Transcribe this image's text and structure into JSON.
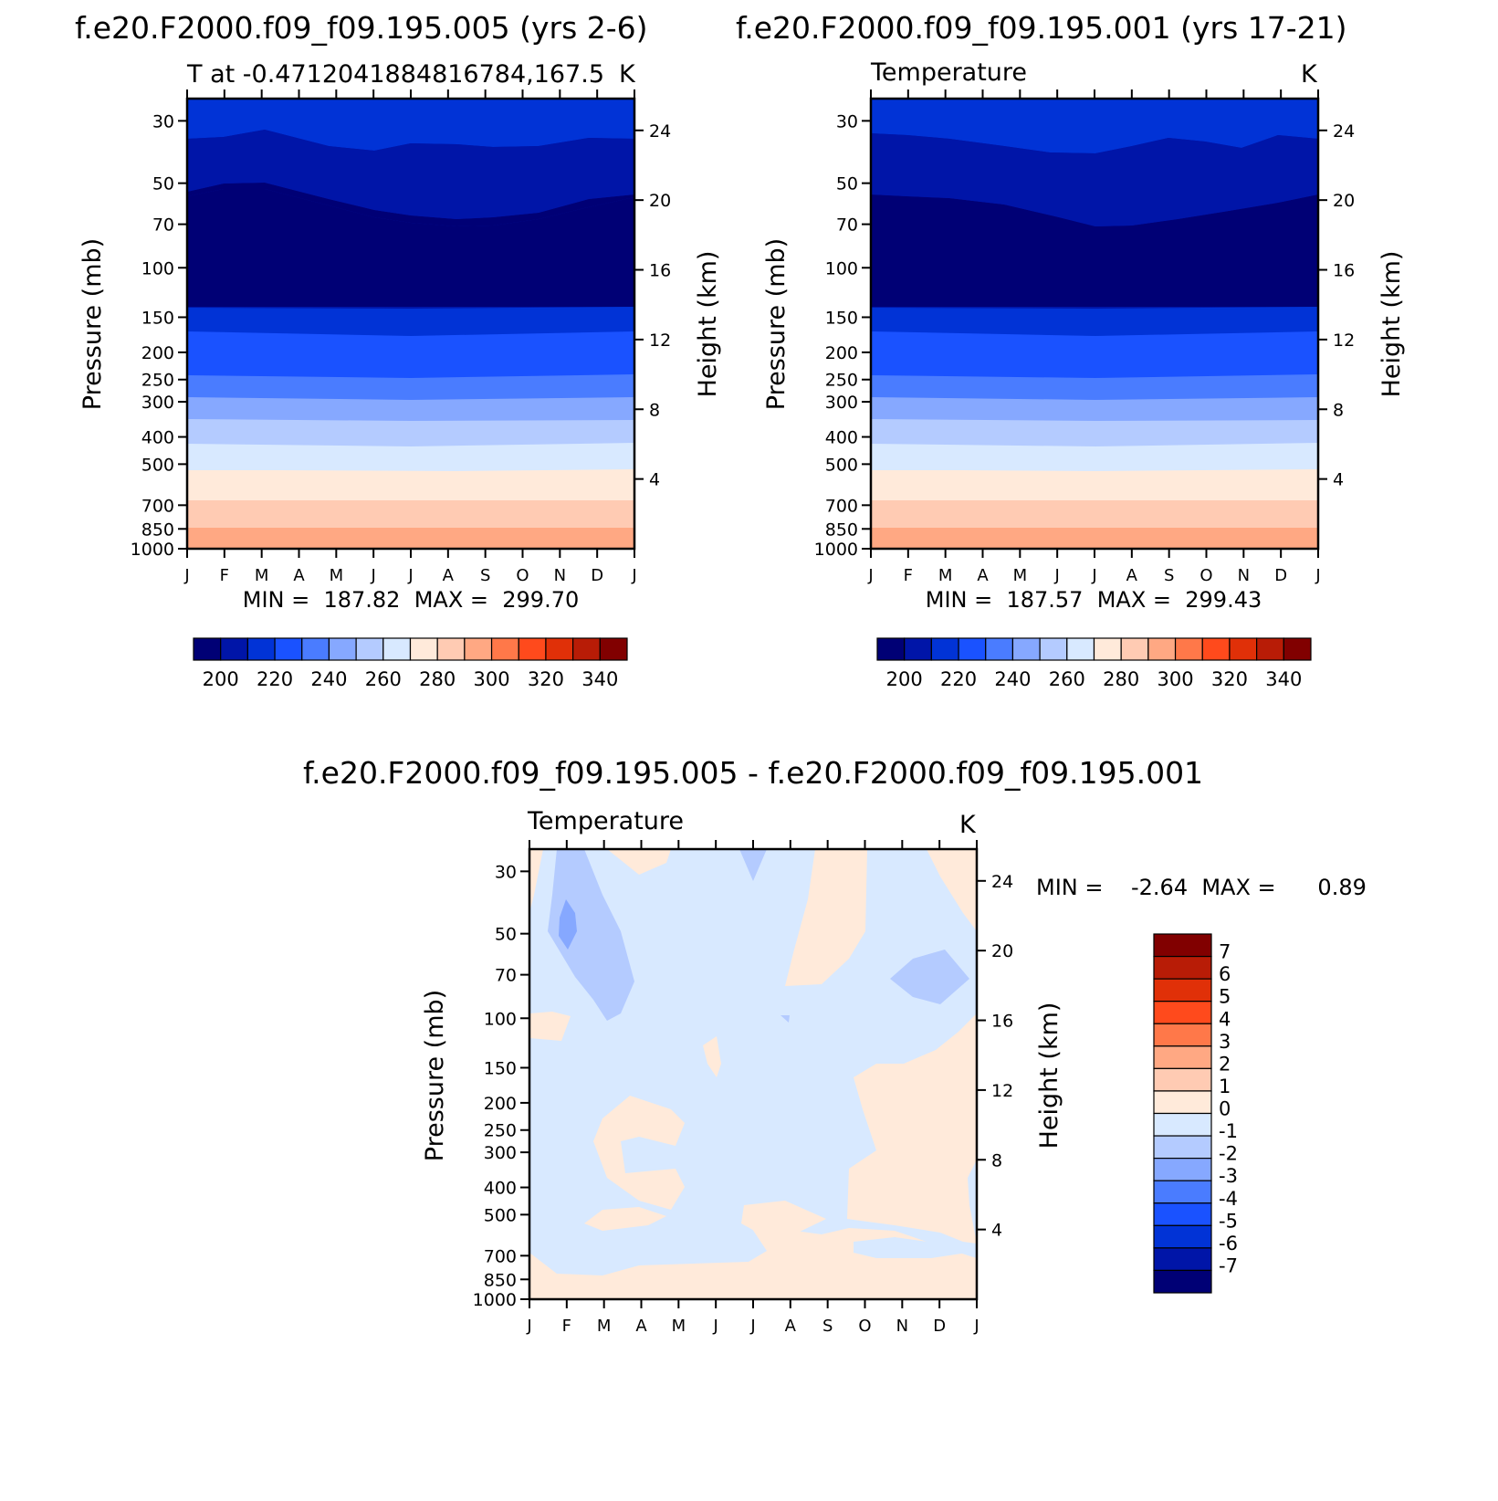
{
  "panels": [
    {
      "title": "f.e20.F2000.f09_f09.195.005 (yrs 2-6)",
      "subtitle_left": "T at -0.4712041884816784,167.5",
      "subtitle_right": "K",
      "min_max_text": "MIN =  187.82  MAX =  299.70"
    },
    {
      "title": "f.e20.F2000.f09_f09.195.001 (yrs 17-21)",
      "subtitle_left": "Temperature",
      "subtitle_right": "K",
      "min_max_text": "MIN =  187.57  MAX =  299.43"
    },
    {
      "title": "f.e20.F2000.f09_f09.195.005 - f.e20.F2000.f09_f09.195.001",
      "subtitle_left": "Temperature",
      "subtitle_right": "K",
      "min_max_text": "MIN =    -2.64  MAX =      0.89"
    }
  ],
  "chart_data": [
    {
      "type": "heatmap",
      "subtype": "filled-contour",
      "title": "f.e20.F2000.f09_f09.195.005 (yrs 2-6)",
      "subtitle": "T at -0.4712041884816784,167.5",
      "units": "K",
      "xlabel": "",
      "ylabel": "Pressure (mb)",
      "ylabel_right": "Height (km)",
      "x_ticks": [
        "J",
        "F",
        "M",
        "A",
        "M",
        "J",
        "J",
        "A",
        "S",
        "O",
        "N",
        "D",
        "J"
      ],
      "y_ticks": [
        "30",
        "50",
        "70",
        "100",
        "150",
        "200",
        "250",
        "300",
        "400",
        "500",
        "700",
        "850",
        "1000"
      ],
      "y_ticks_right": [
        "24",
        "20",
        "16",
        "12",
        "8",
        "4"
      ],
      "y_scale": "log",
      "levels_K": [
        200,
        210,
        220,
        230,
        240,
        250,
        260,
        270,
        280,
        290,
        300,
        310,
        320,
        330,
        340
      ],
      "level_boundaries_hPa_approx": {
        "lt_190": [
          [
            30,
            118
          ],
          [
            100,
            118
          ]
        ],
        "190_200": "about 26-58 hPa (lower near Jul-Aug) and again 120-150 hPa",
        "200_210": "top of domain to about 40 hPa; 150-190 hPa",
        "210_220": "190-220 hPa",
        "220_230": "220-260 hPa",
        "230_240": "260-310 hPa",
        "240_250": "310-370 hPa",
        "250_260": "370-460 hPa",
        "260_270": "460-560 hPa",
        "270_280": "560-700 hPa",
        "280_290": "700-850 hPa",
        "290_300": "850-990 hPa"
      },
      "min": 187.82,
      "max": 299.7,
      "colorbar": {
        "orientation": "horizontal",
        "labels": [
          "200",
          "220",
          "240",
          "260",
          "280",
          "300",
          "320",
          "340"
        ],
        "colors": [
          "#000075",
          "#0015a8",
          "#0133d6",
          "#1a52ff",
          "#4a7cff",
          "#86a8ff",
          "#b4cbff",
          "#d8e9ff",
          "#ffeada",
          "#ffcbb3",
          "#ffa883",
          "#ff7849",
          "#ff4a1c",
          "#e03008",
          "#b81c06",
          "#810000"
        ]
      }
    },
    {
      "type": "heatmap",
      "subtype": "filled-contour",
      "title": "f.e20.F2000.f09_f09.195.001 (yrs 17-21)",
      "subtitle": "Temperature",
      "units": "K",
      "xlabel": "",
      "ylabel": "Pressure (mb)",
      "ylabel_right": "Height (km)",
      "x_ticks": [
        "J",
        "F",
        "M",
        "A",
        "M",
        "J",
        "J",
        "A",
        "S",
        "O",
        "N",
        "D",
        "J"
      ],
      "y_ticks": [
        "30",
        "50",
        "70",
        "100",
        "150",
        "200",
        "250",
        "300",
        "400",
        "500",
        "700",
        "850",
        "1000"
      ],
      "y_ticks_right": [
        "24",
        "20",
        "16",
        "12",
        "8",
        "4"
      ],
      "y_scale": "log",
      "levels_K": [
        200,
        210,
        220,
        230,
        240,
        250,
        260,
        270,
        280,
        290,
        300,
        310,
        320,
        330,
        340
      ],
      "min": 187.57,
      "max": 299.43,
      "colorbar": {
        "orientation": "horizontal",
        "labels": [
          "200",
          "220",
          "240",
          "260",
          "280",
          "300",
          "320",
          "340"
        ],
        "colors": [
          "#000075",
          "#0015a8",
          "#0133d6",
          "#1a52ff",
          "#4a7cff",
          "#86a8ff",
          "#b4cbff",
          "#d8e9ff",
          "#ffeada",
          "#ffcbb3",
          "#ffa883",
          "#ff7849",
          "#ff4a1c",
          "#e03008",
          "#b81c06",
          "#810000"
        ]
      }
    },
    {
      "type": "heatmap",
      "subtype": "filled-contour",
      "title": "f.e20.F2000.f09_f09.195.005 - f.e20.F2000.f09_f09.195.001",
      "subtitle": "Temperature",
      "units": "K",
      "xlabel": "",
      "ylabel": "Pressure (mb)",
      "ylabel_right": "Height (km)",
      "x_ticks": [
        "J",
        "F",
        "M",
        "A",
        "M",
        "J",
        "J",
        "A",
        "S",
        "O",
        "N",
        "D",
        "J"
      ],
      "y_ticks": [
        "30",
        "50",
        "70",
        "100",
        "150",
        "200",
        "250",
        "300",
        "400",
        "500",
        "700",
        "850",
        "1000"
      ],
      "y_ticks_right": [
        "24",
        "20",
        "16",
        "12",
        "8",
        "4"
      ],
      "y_scale": "log",
      "levels_K": [
        -7,
        -6,
        -5,
        -4,
        -3,
        -2,
        -1,
        0,
        1,
        2,
        3,
        4,
        5,
        6,
        7
      ],
      "min": -2.64,
      "max": 0.89,
      "description_of_field": "mostly -1 to 0 K; 0 to 1 K near surface (below ~700 hPa) and in patches Sep-Dec; -2 to -1 K patch Feb-Apr 30-100 hPa with -3 to -2 K core near Feb 50 hPa; -2 to -1 K patch Nov-Dec near 70 hPa",
      "colorbar": {
        "orientation": "vertical",
        "labels": [
          "7",
          "6",
          "5",
          "4",
          "3",
          "2",
          "1",
          "0",
          "-1",
          "-2",
          "-3",
          "-4",
          "-5",
          "-6",
          "-7"
        ],
        "colors": [
          "#810000",
          "#b81c06",
          "#e03008",
          "#ff4a1c",
          "#ff7849",
          "#ffa883",
          "#ffcbb3",
          "#ffeada",
          "#d8e9ff",
          "#b4cbff",
          "#86a8ff",
          "#4a7cff",
          "#1a52ff",
          "#0133d6",
          "#0015a8",
          "#000075"
        ]
      }
    }
  ]
}
